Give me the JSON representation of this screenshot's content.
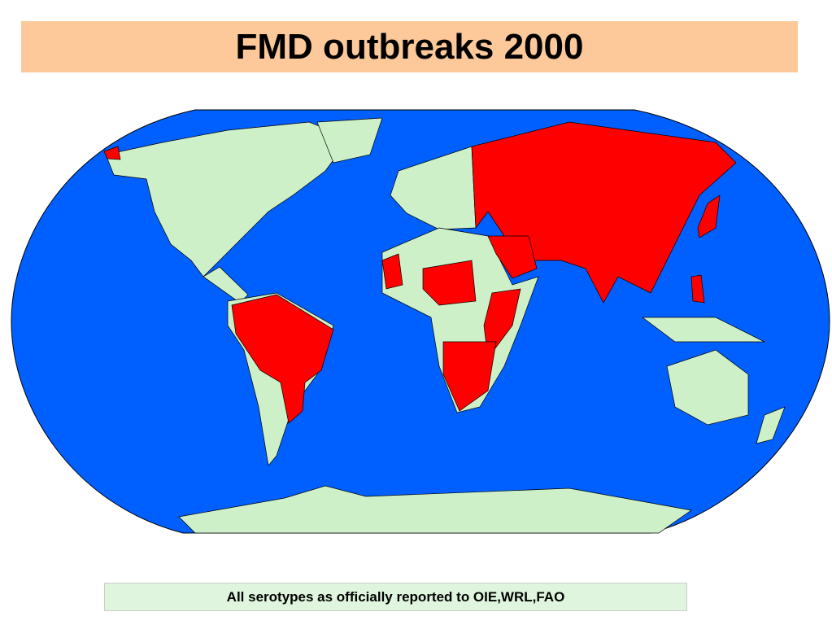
{
  "header": {
    "title": "FMD outbreaks 2000"
  },
  "footer": {
    "note": "All serotypes as officially reported to OIE,WRL,FAO"
  }
}
